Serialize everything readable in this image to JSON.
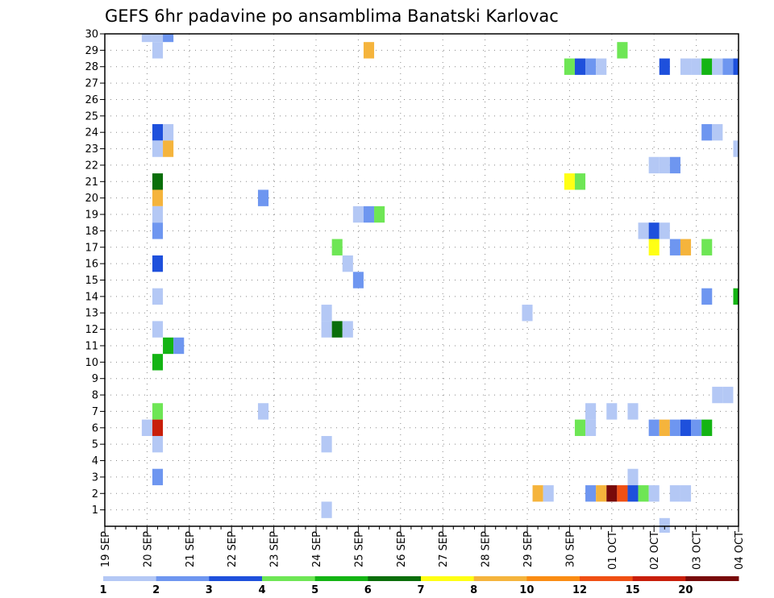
{
  "chart_data": {
    "type": "heatmap",
    "title": "GEFS 6hr padavine po ansamblima Banatski Karlovac",
    "xlabel": "",
    "ylabel": "",
    "x_tick_labels": [
      "19 SEP",
      "20 SEP",
      "21 SEP",
      "22 SEP",
      "23 SEP",
      "24 SEP",
      "25 SEP",
      "26 SEP",
      "27 SEP",
      "28 SEP",
      "29 SEP",
      "30 SEP",
      "01 OCT",
      "02 OCT",
      "03 OCT",
      "04 OCT"
    ],
    "y_tick_labels": [
      "1",
      "2",
      "3",
      "4",
      "5",
      "6",
      "7",
      "8",
      "9",
      "10",
      "11",
      "12",
      "13",
      "14",
      "15",
      "16",
      "17",
      "18",
      "19",
      "20",
      "21",
      "22",
      "23",
      "24",
      "25",
      "26",
      "27",
      "28",
      "29",
      "30"
    ],
    "xlim_steps": [
      0,
      60
    ],
    "ylim": [
      0,
      30
    ],
    "grid": true,
    "legend": {
      "placement": "bottom",
      "bounds": [
        "1",
        "2",
        "3",
        "4",
        "5",
        "6",
        "7",
        "8",
        "10",
        "12",
        "15",
        "20"
      ],
      "colors": [
        "#b4c8f5",
        "#6e96f0",
        "#1e50dc",
        "#6ee655",
        "#14b414",
        "#0a6e0a",
        "#ffff14",
        "#f5b43c",
        "#fa8c14",
        "#f05014",
        "#c81e0a",
        "#780a0a"
      ]
    },
    "cells": [
      [
        4,
        30,
        0
      ],
      [
        5,
        30,
        0
      ],
      [
        6,
        30,
        1
      ],
      [
        5,
        29,
        0
      ],
      [
        25,
        29,
        7
      ],
      [
        49,
        29,
        3
      ],
      [
        44,
        28,
        3
      ],
      [
        45,
        28,
        2
      ],
      [
        46,
        28,
        1
      ],
      [
        47,
        28,
        0
      ],
      [
        53,
        28,
        2
      ],
      [
        55,
        28,
        0
      ],
      [
        56,
        28,
        0
      ],
      [
        57,
        28,
        4
      ],
      [
        58,
        28,
        0
      ],
      [
        59,
        28,
        1
      ],
      [
        60,
        28,
        2
      ],
      [
        5,
        24,
        2
      ],
      [
        6,
        24,
        0
      ],
      [
        57,
        24,
        1
      ],
      [
        58,
        24,
        0
      ],
      [
        5,
        23,
        0
      ],
      [
        6,
        23,
        7
      ],
      [
        60,
        23,
        0
      ],
      [
        52,
        22,
        0
      ],
      [
        53,
        22,
        0
      ],
      [
        54,
        22,
        1
      ],
      [
        5,
        21,
        5
      ],
      [
        44,
        21,
        6
      ],
      [
        45,
        21,
        3
      ],
      [
        5,
        20,
        7
      ],
      [
        15,
        20,
        1
      ],
      [
        5,
        19,
        0
      ],
      [
        24,
        19,
        0
      ],
      [
        25,
        19,
        1
      ],
      [
        26,
        19,
        3
      ],
      [
        5,
        18,
        1
      ],
      [
        51,
        18,
        0
      ],
      [
        52,
        18,
        2
      ],
      [
        53,
        18,
        0
      ],
      [
        22,
        17,
        3
      ],
      [
        52,
        17,
        6
      ],
      [
        54,
        17,
        1
      ],
      [
        55,
        17,
        7
      ],
      [
        57,
        17,
        3
      ],
      [
        5,
        16,
        2
      ],
      [
        23,
        16,
        0
      ],
      [
        24,
        15,
        1
      ],
      [
        5,
        14,
        0
      ],
      [
        57,
        14,
        1
      ],
      [
        60,
        14,
        4
      ],
      [
        21,
        13,
        0
      ],
      [
        40,
        13,
        0
      ],
      [
        5,
        12,
        0
      ],
      [
        21,
        12,
        0
      ],
      [
        22,
        12,
        5
      ],
      [
        23,
        12,
        0
      ],
      [
        6,
        11,
        4
      ],
      [
        7,
        11,
        1
      ],
      [
        5,
        10,
        4
      ],
      [
        58,
        8,
        0
      ],
      [
        59,
        8,
        0
      ],
      [
        5,
        7,
        3
      ],
      [
        15,
        7,
        0
      ],
      [
        46,
        7,
        0
      ],
      [
        48,
        7,
        0
      ],
      [
        50,
        7,
        0
      ],
      [
        4,
        6,
        0
      ],
      [
        5,
        6,
        10
      ],
      [
        45,
        6,
        3
      ],
      [
        46,
        6,
        0
      ],
      [
        52,
        6,
        1
      ],
      [
        53,
        6,
        7
      ],
      [
        54,
        6,
        1
      ],
      [
        55,
        6,
        2
      ],
      [
        56,
        6,
        1
      ],
      [
        57,
        6,
        4
      ],
      [
        5,
        5,
        0
      ],
      [
        21,
        5,
        0
      ],
      [
        5,
        3,
        1
      ],
      [
        50,
        3,
        0
      ],
      [
        41,
        2,
        7
      ],
      [
        42,
        2,
        0
      ],
      [
        46,
        2,
        1
      ],
      [
        47,
        2,
        7
      ],
      [
        48,
        2,
        11
      ],
      [
        49,
        2,
        9
      ],
      [
        50,
        2,
        2
      ],
      [
        51,
        2,
        3
      ],
      [
        52,
        2,
        0
      ],
      [
        54,
        2,
        0
      ],
      [
        55,
        2,
        0
      ],
      [
        21,
        1,
        0
      ],
      [
        53,
        0,
        0
      ]
    ]
  }
}
